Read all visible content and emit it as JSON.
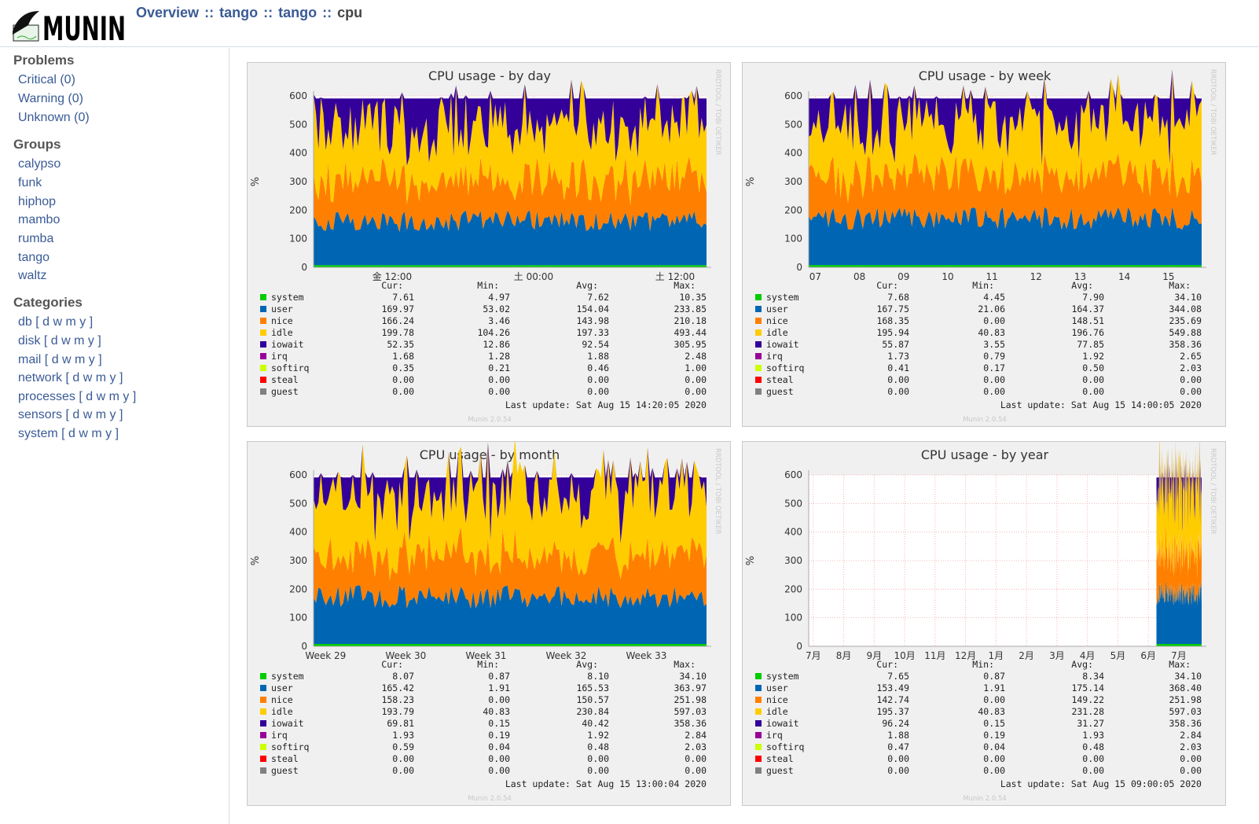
{
  "app": {
    "name": "MUNIN"
  },
  "breadcrumb": {
    "overview": "Overview",
    "sep": "::",
    "group": "tango",
    "host": "tango",
    "current": "cpu"
  },
  "sidebar": {
    "problems": {
      "heading": "Problems",
      "items": [
        {
          "label": "Critical (0)"
        },
        {
          "label": "Warning (0)"
        },
        {
          "label": "Unknown (0)"
        }
      ]
    },
    "groups": {
      "heading": "Groups",
      "items": [
        {
          "label": "calypso"
        },
        {
          "label": "funk"
        },
        {
          "label": "hiphop"
        },
        {
          "label": "mambo"
        },
        {
          "label": "rumba"
        },
        {
          "label": "tango"
        },
        {
          "label": "waltz"
        }
      ]
    },
    "categories": {
      "heading": "Categories",
      "items": [
        {
          "name": "db",
          "links": "[ d w m y ]"
        },
        {
          "name": "disk",
          "links": "[ d w m y ]"
        },
        {
          "name": "mail",
          "links": "[ d w m y ]"
        },
        {
          "name": "network",
          "links": "[ d w m y ]"
        },
        {
          "name": "processes",
          "links": "[ d w m y ]"
        },
        {
          "name": "sensors",
          "links": "[ d w m y ]"
        },
        {
          "name": "system",
          "links": "[ d w m y ]"
        }
      ]
    }
  },
  "legend_headers": {
    "cur": "Cur:",
    "min": "Min:",
    "avg": "Avg:",
    "max": "Max:"
  },
  "series_colors": {
    "system": "#00cc00",
    "user": "#0066b3",
    "nice": "#ff8000",
    "idle": "#ffcc00",
    "iowait": "#330099",
    "irq": "#990099",
    "softirq": "#ccff00",
    "steal": "#ff0000",
    "guest": "#808080"
  },
  "y_axis": {
    "label": "%",
    "ticks": [
      "0",
      "100",
      "200",
      "300",
      "400",
      "500",
      "600"
    ],
    "ylim": [
      0,
      600
    ]
  },
  "watermark": "RRDTOOL / TOBI OETIKER",
  "footer_version": "Munin 2.0.54",
  "chart_data": [
    {
      "type": "area",
      "title": "CPU usage - by day",
      "xticks": [
        "金 12:00",
        "土 00:00",
        "土 12:00"
      ],
      "last_update": "Last update: Sat Aug 15 14:20:05 2020",
      "series": [
        {
          "name": "system",
          "cur": "7.61",
          "min": "4.97",
          "avg": "7.62",
          "max": "10.35"
        },
        {
          "name": "user",
          "cur": "169.97",
          "min": "53.02",
          "avg": "154.04",
          "max": "233.85"
        },
        {
          "name": "nice",
          "cur": "166.24",
          "min": "3.46",
          "avg": "143.98",
          "max": "210.18"
        },
        {
          "name": "idle",
          "cur": "199.78",
          "min": "104.26",
          "avg": "197.33",
          "max": "493.44"
        },
        {
          "name": "iowait",
          "cur": "52.35",
          "min": "12.86",
          "avg": "92.54",
          "max": "305.95"
        },
        {
          "name": "irq",
          "cur": "1.68",
          "min": "1.28",
          "avg": "1.88",
          "max": "2.48"
        },
        {
          "name": "softirq",
          "cur": "0.35",
          "min": "0.21",
          "avg": "0.46",
          "max": "1.00"
        },
        {
          "name": "steal",
          "cur": "0.00",
          "min": "0.00",
          "avg": "0.00",
          "max": "0.00"
        },
        {
          "name": "guest",
          "cur": "0.00",
          "min": "0.00",
          "avg": "0.00",
          "max": "0.00"
        }
      ]
    },
    {
      "type": "area",
      "title": "CPU usage - by week",
      "xticks": [
        "07",
        "08",
        "09",
        "10",
        "11",
        "12",
        "13",
        "14",
        "15"
      ],
      "last_update": "Last update: Sat Aug 15 14:00:05 2020",
      "series": [
        {
          "name": "system",
          "cur": "7.68",
          "min": "4.45",
          "avg": "7.90",
          "max": "34.10"
        },
        {
          "name": "user",
          "cur": "167.75",
          "min": "21.06",
          "avg": "164.37",
          "max": "344.08"
        },
        {
          "name": "nice",
          "cur": "168.35",
          "min": "0.00",
          "avg": "148.51",
          "max": "235.69"
        },
        {
          "name": "idle",
          "cur": "195.94",
          "min": "40.83",
          "avg": "196.76",
          "max": "549.88"
        },
        {
          "name": "iowait",
          "cur": "55.87",
          "min": "3.55",
          "avg": "77.85",
          "max": "358.36"
        },
        {
          "name": "irq",
          "cur": "1.73",
          "min": "0.79",
          "avg": "1.92",
          "max": "2.65"
        },
        {
          "name": "softirq",
          "cur": "0.41",
          "min": "0.17",
          "avg": "0.50",
          "max": "2.03"
        },
        {
          "name": "steal",
          "cur": "0.00",
          "min": "0.00",
          "avg": "0.00",
          "max": "0.00"
        },
        {
          "name": "guest",
          "cur": "0.00",
          "min": "0.00",
          "avg": "0.00",
          "max": "0.00"
        }
      ]
    },
    {
      "type": "area",
      "title": "CPU usage - by month",
      "xticks": [
        "Week 29",
        "Week 30",
        "Week 31",
        "Week 32",
        "Week 33"
      ],
      "last_update": "Last update: Sat Aug 15 13:00:04 2020",
      "series": [
        {
          "name": "system",
          "cur": "8.07",
          "min": "0.87",
          "avg": "8.10",
          "max": "34.10"
        },
        {
          "name": "user",
          "cur": "165.42",
          "min": "1.91",
          "avg": "165.53",
          "max": "363.97"
        },
        {
          "name": "nice",
          "cur": "158.23",
          "min": "0.00",
          "avg": "150.57",
          "max": "251.98"
        },
        {
          "name": "idle",
          "cur": "193.79",
          "min": "40.83",
          "avg": "230.84",
          "max": "597.03"
        },
        {
          "name": "iowait",
          "cur": "69.81",
          "min": "0.15",
          "avg": "40.42",
          "max": "358.36"
        },
        {
          "name": "irq",
          "cur": "1.93",
          "min": "0.19",
          "avg": "1.92",
          "max": "2.84"
        },
        {
          "name": "softirq",
          "cur": "0.59",
          "min": "0.04",
          "avg": "0.48",
          "max": "2.03"
        },
        {
          "name": "steal",
          "cur": "0.00",
          "min": "0.00",
          "avg": "0.00",
          "max": "0.00"
        },
        {
          "name": "guest",
          "cur": "0.00",
          "min": "0.00",
          "avg": "0.00",
          "max": "0.00"
        }
      ]
    },
    {
      "type": "area",
      "title": "CPU usage - by year",
      "xticks": [
        "7月",
        "8月",
        "9月",
        "10月",
        "11月",
        "12月",
        "1月",
        "2月",
        "3月",
        "4月",
        "5月",
        "6月",
        "7月"
      ],
      "last_update": "Last update: Sat Aug 15 09:00:05 2020",
      "series": [
        {
          "name": "system",
          "cur": "7.65",
          "min": "0.87",
          "avg": "8.34",
          "max": "34.10"
        },
        {
          "name": "user",
          "cur": "153.49",
          "min": "1.91",
          "avg": "175.14",
          "max": "368.40"
        },
        {
          "name": "nice",
          "cur": "142.74",
          "min": "0.00",
          "avg": "149.22",
          "max": "251.98"
        },
        {
          "name": "idle",
          "cur": "195.37",
          "min": "40.83",
          "avg": "231.28",
          "max": "597.03"
        },
        {
          "name": "iowait",
          "cur": "96.24",
          "min": "0.15",
          "avg": "31.27",
          "max": "358.36"
        },
        {
          "name": "irq",
          "cur": "1.88",
          "min": "0.19",
          "avg": "1.93",
          "max": "2.84"
        },
        {
          "name": "softirq",
          "cur": "0.47",
          "min": "0.04",
          "avg": "0.48",
          "max": "2.03"
        },
        {
          "name": "steal",
          "cur": "0.00",
          "min": "0.00",
          "avg": "0.00",
          "max": "0.00"
        },
        {
          "name": "guest",
          "cur": "0.00",
          "min": "0.00",
          "avg": "0.00",
          "max": "0.00"
        }
      ]
    }
  ]
}
